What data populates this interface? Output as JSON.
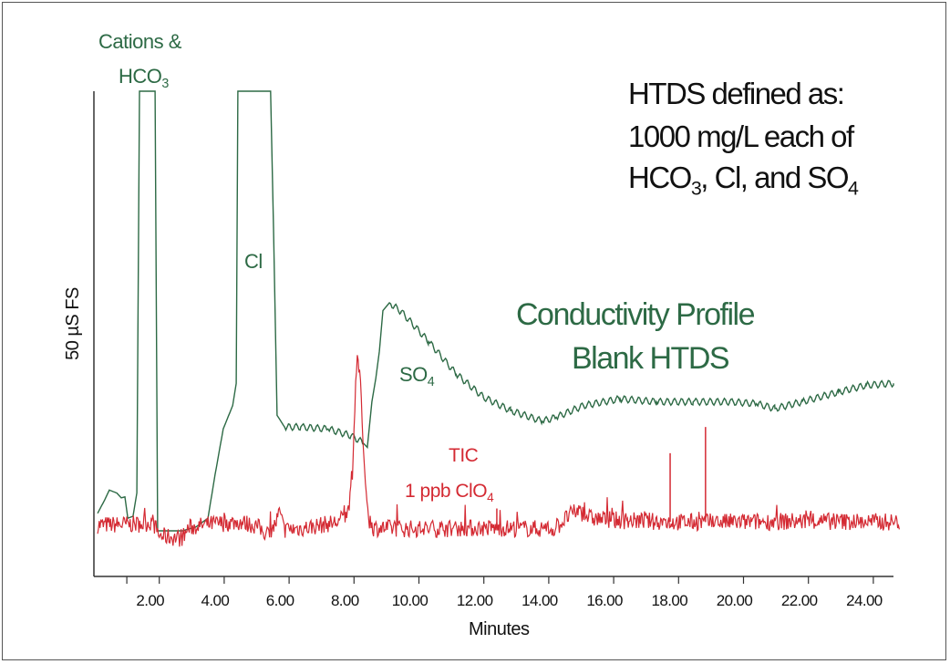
{
  "chart_data": {
    "type": "line",
    "xlabel": "Minutes",
    "ylabel": "50 µS FS",
    "xlim": [
      0,
      24.8
    ],
    "x_ticks": [
      "2.00",
      "4.00",
      "6.00",
      "8.00",
      "10.00",
      "12.00",
      "14.00",
      "16.00",
      "18.00",
      "20.00",
      "22.00",
      "24.00"
    ],
    "x_tick_values": [
      2,
      4,
      6,
      8,
      10,
      12,
      14,
      16,
      18,
      20,
      22,
      24
    ],
    "minor_tick_values": [
      1
    ],
    "ylim_uS": [
      0,
      50
    ],
    "grid": false,
    "colors": {
      "conductivity": "#2d6a45",
      "tic": "#d42a33",
      "axis": "#333333"
    },
    "series": [
      {
        "key": "conductivity",
        "points": [
          [
            0.1,
            6.5
          ],
          [
            0.32,
            7.9
          ],
          [
            0.46,
            8.9
          ],
          [
            0.69,
            8.6
          ],
          [
            0.83,
            8.1
          ],
          [
            0.94,
            8.2
          ],
          [
            1.03,
            6.0
          ],
          [
            1.19,
            6.2
          ],
          [
            1.31,
            8.6
          ],
          [
            1.39,
            50
          ],
          [
            1.87,
            50
          ],
          [
            1.95,
            4.7
          ],
          [
            2.71,
            4.7
          ],
          [
            3.13,
            5.1
          ],
          [
            3.5,
            6.0
          ],
          [
            3.72,
            10.5
          ],
          [
            3.97,
            15.2
          ],
          [
            4.26,
            17.6
          ],
          [
            4.37,
            19.9
          ],
          [
            4.42,
            50
          ],
          [
            5.43,
            50
          ],
          [
            5.52,
            35.9
          ],
          [
            5.63,
            16.6
          ],
          [
            5.86,
            15.4
          ],
          [
            6.36,
            15.4
          ],
          [
            7.2,
            15.2
          ],
          [
            7.91,
            14.5
          ],
          [
            8.27,
            13.8
          ],
          [
            8.41,
            13.3
          ],
          [
            8.55,
            18.0
          ],
          [
            8.67,
            20.4
          ],
          [
            8.78,
            23.2
          ],
          [
            8.89,
            27.4
          ],
          [
            9.09,
            28.2
          ],
          [
            9.45,
            27.3
          ],
          [
            10.3,
            24.2
          ],
          [
            11.14,
            20.9
          ],
          [
            11.98,
            18.5
          ],
          [
            12.82,
            17.1
          ],
          [
            13.8,
            16.0
          ],
          [
            14.23,
            16.4
          ],
          [
            15.07,
            17.6
          ],
          [
            16.2,
            18.3
          ],
          [
            17.32,
            18.0
          ],
          [
            18.45,
            18.0
          ],
          [
            19.57,
            18.0
          ],
          [
            20.4,
            17.8
          ],
          [
            20.97,
            17.3
          ],
          [
            21.81,
            18.0
          ],
          [
            22.93,
            19.0
          ],
          [
            23.78,
            19.7
          ],
          [
            24.62,
            19.9
          ]
        ]
      },
      {
        "key": "tic",
        "points": [
          [
            0.1,
            5.3
          ],
          [
            1.5,
            5.4
          ],
          [
            1.8,
            5.6
          ],
          [
            2.0,
            4.2
          ],
          [
            2.7,
            3.9
          ],
          [
            2.9,
            5.0
          ],
          [
            3.6,
            5.4
          ],
          [
            4.5,
            5.6
          ],
          [
            5.0,
            5.2
          ],
          [
            5.4,
            4.2
          ],
          [
            5.6,
            5.6
          ],
          [
            5.7,
            6.6
          ],
          [
            5.85,
            4.8
          ],
          [
            6.5,
            5.0
          ],
          [
            7.5,
            5.6
          ],
          [
            7.8,
            6.5
          ],
          [
            7.95,
            10
          ],
          [
            8.05,
            20
          ],
          [
            8.1,
            22.9
          ],
          [
            8.2,
            20
          ],
          [
            8.3,
            12
          ],
          [
            8.45,
            6
          ],
          [
            8.6,
            5.0
          ],
          [
            10,
            4.9
          ],
          [
            12,
            5.0
          ],
          [
            14.2,
            4.9
          ],
          [
            14.6,
            6.2
          ],
          [
            14.9,
            6.8
          ],
          [
            15.3,
            6.0
          ],
          [
            16,
            5.8
          ],
          [
            18,
            5.6
          ],
          [
            20,
            5.6
          ],
          [
            22,
            5.7
          ],
          [
            24.8,
            5.6
          ]
        ],
        "spikes": [
          [
            12.4,
            7.0
          ],
          [
            17.74,
            12.7
          ],
          [
            18.83,
            15.4
          ]
        ]
      }
    ],
    "annotations": {
      "cations_line1": "Cations &",
      "cations_line2": {
        "text": "HCO",
        "sub": "3"
      },
      "cl": "Cl",
      "so4": {
        "text": "SO",
        "sub": "4"
      },
      "profile_line1": "Conductivity Profile",
      "profile_line2": "Blank HTDS",
      "tic_line1": "TIC",
      "tic_line2": {
        "text": "1 ppb ClO",
        "sub": "4"
      },
      "htds_line1": "HTDS defined as:",
      "htds_line2": "1000 mg/L each of",
      "htds_line3": {
        "a": "HCO",
        "a_sub": "3",
        "b": ", Cl, and SO",
        "b_sub": "4"
      }
    }
  }
}
